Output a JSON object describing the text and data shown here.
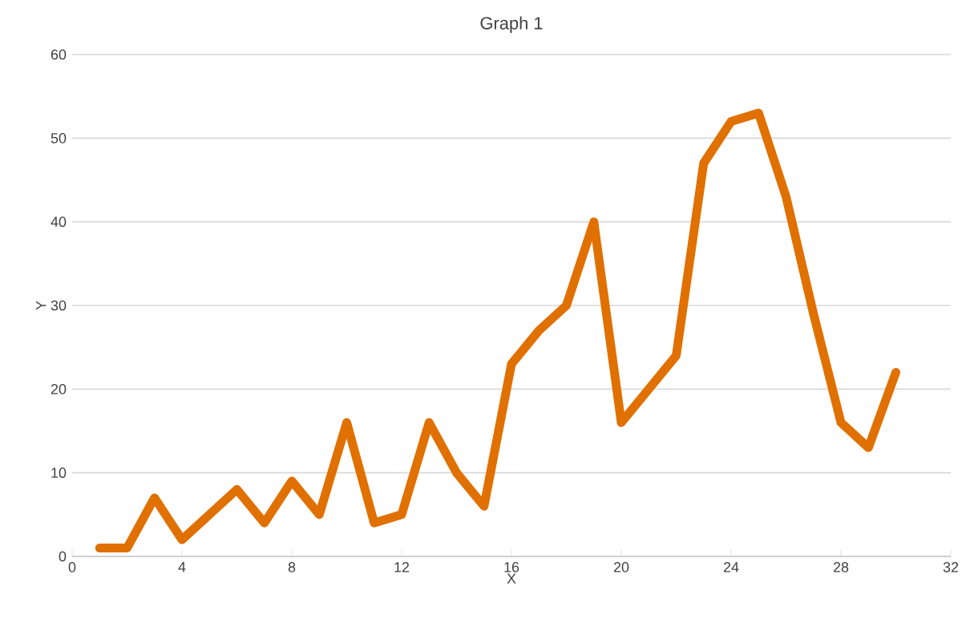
{
  "chart_data": {
    "type": "line",
    "title": "Graph 1",
    "xlabel": "X",
    "ylabel": "Y",
    "x": [
      1,
      2,
      3,
      4,
      5,
      6,
      7,
      8,
      9,
      10,
      11,
      12,
      13,
      14,
      15,
      16,
      17,
      18,
      19,
      20,
      21,
      22,
      23,
      24,
      25,
      26,
      27,
      28,
      29,
      30
    ],
    "values": [
      1,
      1,
      7,
      2,
      5,
      8,
      4,
      9,
      5,
      16,
      4,
      5,
      16,
      10,
      6,
      23,
      27,
      30,
      40,
      16,
      20,
      24,
      47,
      52,
      53,
      43,
      29,
      16,
      13,
      22
    ],
    "color": "#e07000",
    "xlim": [
      0,
      32
    ],
    "xticks": [
      0,
      4,
      8,
      12,
      16,
      20,
      24,
      28,
      32
    ],
    "ylim": [
      0,
      60
    ],
    "yticks": [
      0,
      10,
      20,
      30,
      40,
      50,
      60
    ],
    "grid": "y",
    "marker": "none",
    "line_style": "solid"
  }
}
